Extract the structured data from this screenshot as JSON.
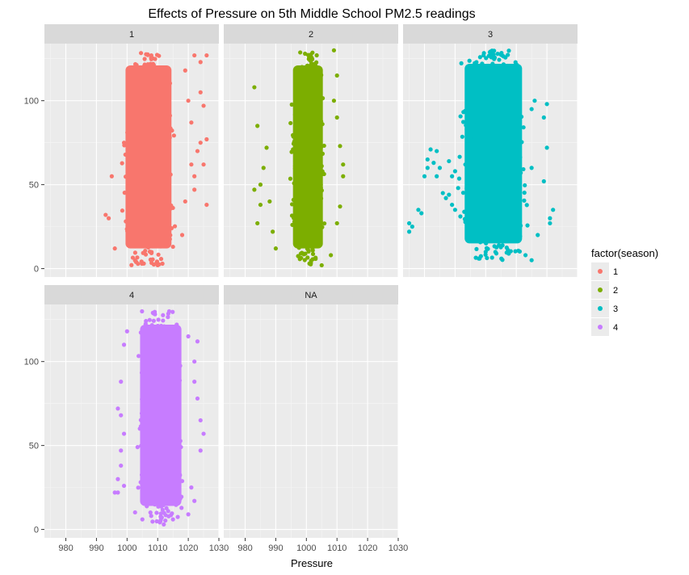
{
  "chart_data": {
    "type": "scatter",
    "title": "Effects of Pressure on 5th Middle School PM2.5 readings",
    "xlabel": "Pressure",
    "ylabel": "",
    "xlim": [
      973,
      1030
    ],
    "ylim": [
      -5,
      134
    ],
    "x_ticks": [
      980,
      990,
      1000,
      1010,
      1020,
      1030
    ],
    "y_ticks": [
      0,
      50,
      100
    ],
    "facets": [
      "1",
      "2",
      "3",
      "4",
      "NA"
    ],
    "legend": {
      "title": "factor(season)",
      "position": "right",
      "entries": [
        {
          "label": "1",
          "color": "#F8766D"
        },
        {
          "label": "2",
          "color": "#7CAE00"
        },
        {
          "label": "3",
          "color": "#00BFC4"
        },
        {
          "label": "4",
          "color": "#C77CFF"
        }
      ]
    },
    "series": [
      {
        "facet": "1",
        "color": "#F8766D",
        "x_core": [
          997,
          1017
        ],
        "y_range": [
          2,
          129
        ],
        "points": [
          [
            1026,
            127
          ],
          [
            1020,
            100
          ],
          [
            1024,
            105
          ],
          [
            1025,
            97
          ],
          [
            1026,
            77
          ],
          [
            1024,
            75
          ],
          [
            1025,
            62
          ],
          [
            1022,
            47
          ],
          [
            1026,
            38
          ],
          [
            995,
            55
          ],
          [
            994,
            30
          ],
          [
            996,
            12
          ],
          [
            1018,
            20
          ],
          [
            1015,
            13
          ],
          [
            1003,
            4
          ],
          [
            1010,
            2
          ],
          [
            1023,
            70
          ],
          [
            1021,
            87
          ],
          [
            1019,
            118
          ],
          [
            1022,
            127
          ],
          [
            1024,
            123
          ],
          [
            993,
            32
          ],
          [
            1019,
            40
          ],
          [
            1022,
            55
          ],
          [
            1021,
            62
          ]
        ]
      },
      {
        "facet": "2",
        "color": "#7CAE00",
        "x_core": [
          994,
          1007
        ],
        "y_range": [
          2,
          129
        ],
        "points": [
          [
            983,
            108
          ],
          [
            984,
            85
          ],
          [
            983,
            47
          ],
          [
            984,
            27
          ],
          [
            985,
            38
          ],
          [
            986,
            60
          ],
          [
            987,
            72
          ],
          [
            988,
            40
          ],
          [
            989,
            22
          ],
          [
            1010,
            115
          ],
          [
            1009,
            100
          ],
          [
            1011,
            73
          ],
          [
            1011,
            37
          ],
          [
            1012,
            55
          ],
          [
            1010,
            27
          ],
          [
            1009,
            130
          ],
          [
            990,
            12
          ],
          [
            1008,
            8
          ],
          [
            1001,
            3
          ],
          [
            1005,
            2
          ],
          [
            985,
            50
          ],
          [
            1012,
            62
          ],
          [
            1010,
            90
          ]
        ]
      },
      {
        "facet": "3",
        "color": "#00BFC4",
        "x_core": [
          990,
          1015
        ],
        "y_range": [
          5,
          130
        ],
        "points": [
          [
            975,
            22
          ],
          [
            975,
            27
          ],
          [
            976,
            25
          ],
          [
            978,
            35
          ],
          [
            979,
            33
          ],
          [
            980,
            55
          ],
          [
            981,
            65
          ],
          [
            981,
            60
          ],
          [
            982,
            71
          ],
          [
            983,
            63
          ],
          [
            984,
            55
          ],
          [
            985,
            60
          ],
          [
            984,
            70
          ],
          [
            986,
            45
          ],
          [
            987,
            42
          ],
          [
            988,
            44
          ],
          [
            989,
            38
          ],
          [
            990,
            35
          ],
          [
            991,
            48
          ],
          [
            989,
            55
          ],
          [
            990,
            58
          ],
          [
            988,
            64
          ],
          [
            1019,
            90
          ],
          [
            1020,
            98
          ],
          [
            1020,
            72
          ],
          [
            1021,
            30
          ],
          [
            1021,
            27
          ],
          [
            1022,
            35
          ],
          [
            1019,
            52
          ],
          [
            1015,
            60
          ],
          [
            1017,
            20
          ],
          [
            1013,
            8
          ],
          [
            1015,
            5
          ],
          [
            1000,
            10
          ],
          [
            998,
            6
          ],
          [
            995,
            78
          ],
          [
            997,
            85
          ],
          [
            1015,
            95
          ],
          [
            1016,
            100
          ]
        ]
      },
      {
        "facet": "4",
        "color": "#C77CFF",
        "x_core": [
          1002,
          1020
        ],
        "y_range": [
          4,
          130
        ],
        "points": [
          [
            998,
            88
          ],
          [
            998,
            68
          ],
          [
            997,
            72
          ],
          [
            999,
            57
          ],
          [
            998,
            47
          ],
          [
            998,
            38
          ],
          [
            997,
            22
          ],
          [
            996,
            22
          ],
          [
            999,
            26
          ],
          [
            997,
            30
          ],
          [
            1024,
            65
          ],
          [
            1025,
            57
          ],
          [
            1024,
            47
          ],
          [
            1023,
            78
          ],
          [
            1022,
            88
          ],
          [
            1022,
            100
          ],
          [
            1020,
            115
          ],
          [
            1023,
            112
          ],
          [
            1021,
            25
          ],
          [
            1022,
            17
          ],
          [
            1000,
            118
          ],
          [
            999,
            110
          ],
          [
            1020,
            9
          ],
          [
            1015,
            6
          ],
          [
            1005,
            6
          ],
          [
            1012,
            3
          ]
        ]
      }
    ]
  }
}
